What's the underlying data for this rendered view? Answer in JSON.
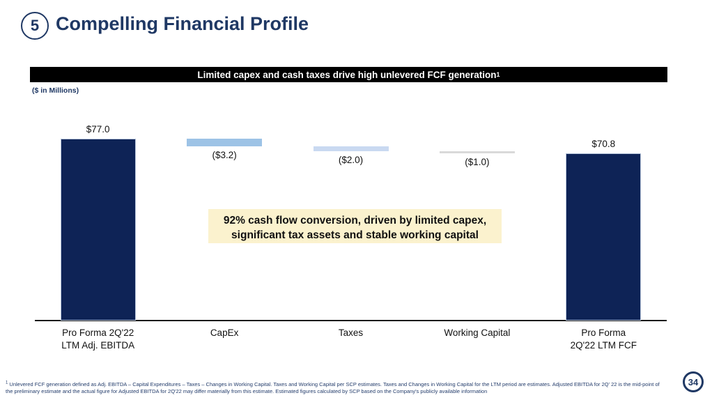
{
  "slide": {
    "number_badge": "5",
    "title": "Compelling Financial Profile",
    "banner": {
      "text": "Limited capex and cash taxes drive high unlevered FCF generation",
      "superscript": "1"
    },
    "units_label": "($ in Millions)",
    "callout": {
      "line1": "92% cash flow conversion, driven by limited capex,",
      "line2": "significant tax assets and stable working capital"
    },
    "footnote": {
      "superscript": "1",
      "text": " Unlevered FCF generation defined as Adj. EBITDA – Capital Expenditures – Taxes – Changes in Working Capital. Taxes and Working Capital per SCP estimates. Taxes and Changes in Working Capital for the LTM period are estimates. Adjusted EBITDA for 2Q' 22 is the mid-point of the preliminary estimate and the actual figure for Adjusted EBITDA for 2Q'22 may differ materially from this estimate. Estimated figures calculated by SCP based on the Company's publicly available information"
    },
    "page_number": "34",
    "colors": {
      "accent_navy": "#1F3864",
      "banner_bg": "#000000",
      "banner_text": "#FFFFFF",
      "callout_bg": "#FBF2CE",
      "footnote_text": "#233C6B"
    }
  },
  "chart_data": {
    "type": "bar",
    "subtype": "waterfall",
    "title": "Limited capex and cash taxes drive high unlevered FCF generation",
    "units": "$ in Millions",
    "categories": [
      [
        "Pro Forma 2Q'22",
        "LTM Adj. EBITDA"
      ],
      [
        "CapEx"
      ],
      [
        "Taxes"
      ],
      [
        "Working Capital"
      ],
      [
        "Pro Forma",
        "2Q'22 LTM FCF"
      ]
    ],
    "values": [
      77.0,
      -3.2,
      -2.0,
      -1.0,
      70.8
    ],
    "is_total": [
      true,
      false,
      false,
      false,
      true
    ],
    "data_labels": [
      "$77.0",
      "($3.2)",
      "($2.0)",
      "($1.0)",
      "$70.8"
    ],
    "bar_colors": [
      "#0E2356",
      "#9DC3E6",
      "#C9D9F1",
      "#D9D9D9",
      "#0E2356"
    ],
    "ylim": [
      0,
      80
    ],
    "grid": false,
    "legend": false,
    "xlabel": "",
    "ylabel": "$ in Millions"
  }
}
